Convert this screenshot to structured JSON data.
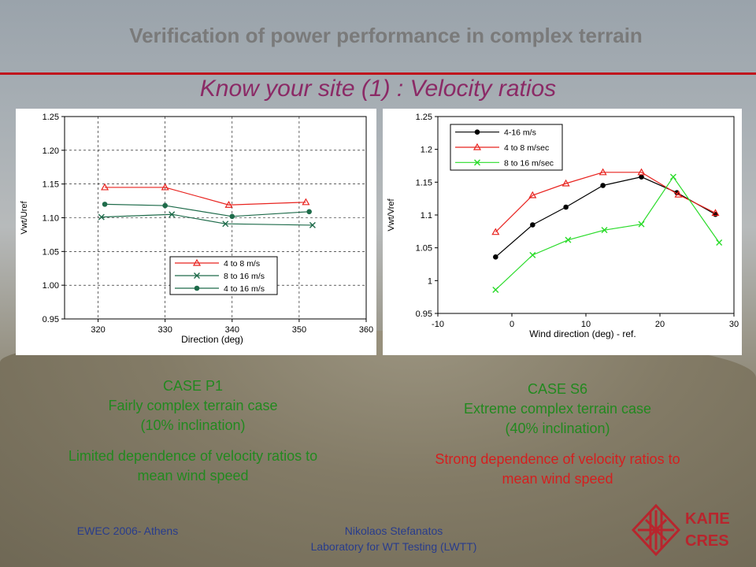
{
  "slide": {
    "title": "Verification of power performance in complex terrain",
    "subtitle": "Know your site (1) : Velocity ratios"
  },
  "chart_data": [
    {
      "type": "line",
      "xlabel": "Direction (deg)",
      "ylabel": "Vwt/Uref",
      "xlim": [
        315,
        360
      ],
      "ylim": [
        0.95,
        1.25
      ],
      "xticks": [
        "320",
        "330",
        "340",
        "350",
        "360"
      ],
      "yticks": [
        "1.25",
        "1.20",
        "1.15",
        "1.10",
        "1.05",
        "1.00",
        "0.95"
      ],
      "grid": true,
      "legend_position": "lower-right",
      "series": [
        {
          "name": "4 to 8 m/s",
          "color": "#e8231f",
          "marker": "triangle",
          "x": [
            321,
            330,
            339.5,
            351
          ],
          "y": [
            1.145,
            1.145,
            1.119,
            1.123
          ]
        },
        {
          "name": "8 to 16 m/s",
          "color": "#1e6b4a",
          "marker": "x",
          "x": [
            320.5,
            331,
            339,
            352
          ],
          "y": [
            1.101,
            1.105,
            1.091,
            1.089
          ]
        },
        {
          "name": "4 to 16 m/s",
          "color": "#1e6b4a",
          "marker": "circle",
          "x": [
            321,
            330,
            340,
            351.5
          ],
          "y": [
            1.12,
            1.118,
            1.102,
            1.109
          ]
        }
      ]
    },
    {
      "type": "line",
      "xlabel": "Wind direction (deg) - ref.",
      "ylabel": "Vwt/Vref",
      "xlim": [
        -10,
        30
      ],
      "ylim": [
        0.95,
        1.25
      ],
      "xticks": [
        "-10",
        "0",
        "10",
        "20",
        "30"
      ],
      "yticks": [
        "1.25",
        "1.2",
        "1.15",
        "1.1",
        "1.05",
        "1",
        "0.95"
      ],
      "grid": false,
      "legend_position": "top-left",
      "series": [
        {
          "name": "4-16 m/s",
          "color": "#000000",
          "marker": "circle",
          "x": [
            -2.2,
            2.8,
            7.3,
            12.3,
            17.5,
            22.3,
            27.5
          ],
          "y": [
            1.036,
            1.085,
            1.112,
            1.145,
            1.158,
            1.134,
            1.101
          ]
        },
        {
          "name": "4 to 8 m/sec",
          "color": "#e8231f",
          "marker": "triangle",
          "x": [
            -2.2,
            2.8,
            7.3,
            12.3,
            17.5,
            22.5,
            27.5
          ],
          "y": [
            1.074,
            1.13,
            1.148,
            1.165,
            1.165,
            1.131,
            1.103
          ]
        },
        {
          "name": "8 to 16 m/sec",
          "color": "#2adb2a",
          "marker": "x",
          "x": [
            -2.2,
            2.8,
            7.6,
            12.5,
            17.5,
            21.8,
            28.0
          ],
          "y": [
            0.986,
            1.039,
            1.062,
            1.077,
            1.086,
            1.158,
            1.058
          ]
        }
      ]
    }
  ],
  "left_caption": {
    "line1": "CASE P1",
    "line2": "Fairly complex terrain case",
    "line3": "(10% inclination)",
    "line4": "Limited dependence of velocity ratios to",
    "line5": "mean wind speed"
  },
  "right_caption": {
    "line1": "CASE S6",
    "line2": "Extreme complex terrain case",
    "line3": "(40% inclination)",
    "line4": "Strong dependence of velocity ratios to",
    "line5": "mean wind speed"
  },
  "footer": {
    "event": "EWEC 2006- Athens",
    "author": "Nikolaos Stefanatos",
    "lab": "Laboratory for WT Testing (LWTT)"
  },
  "logo": {
    "greek": "ΚΑΠΕ",
    "latin": "CRES"
  },
  "colors": {
    "title": "#7a7a7a",
    "subtitle": "#8b2a66",
    "rule": "#c0141c",
    "caption_green": "#22891f",
    "caption_red": "#d41f1f",
    "footer": "#283c8c",
    "logo": "#b8252d"
  }
}
